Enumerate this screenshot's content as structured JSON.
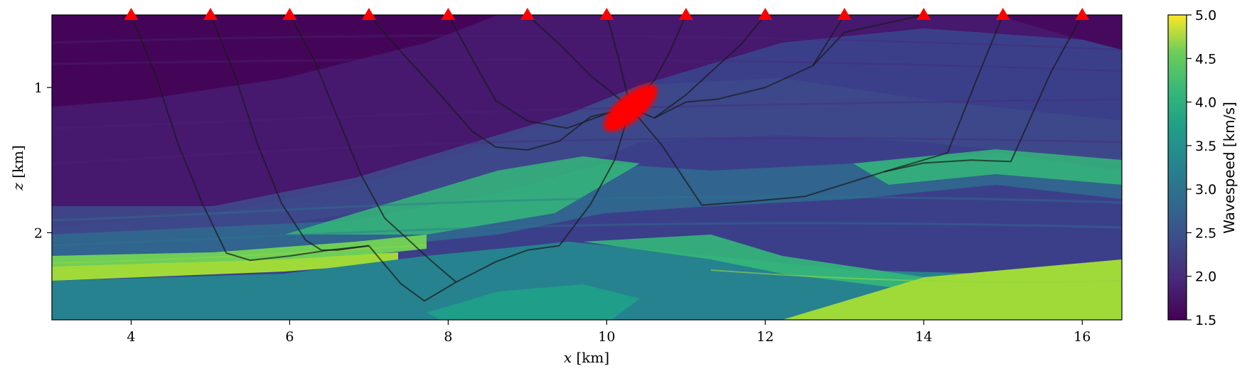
{
  "chart_data": {
    "type": "heatmap",
    "title": "",
    "xlabel_var": "x",
    "xlabel_unit": " [km]",
    "ylabel_var": "z",
    "ylabel_unit": " [km]",
    "xlim": [
      3.0,
      16.5
    ],
    "ylim_inverted": [
      0.5,
      2.6
    ],
    "x_ticks": [
      4,
      6,
      8,
      10,
      12,
      14,
      16
    ],
    "y_ticks": [
      1,
      2
    ],
    "colorbar": {
      "label": "Wavespeed [km/s]",
      "range": [
        1.5,
        5.0
      ],
      "ticks": [
        "1.5",
        "2.0",
        "2.5",
        "3.0",
        "3.5",
        "4.0",
        "4.5",
        "5.0"
      ],
      "colormap": "viridis"
    },
    "receivers": {
      "marker": "red-triangle",
      "color": "#ff0000",
      "depth": 0.5,
      "x": [
        4,
        5,
        6,
        7,
        8,
        9,
        10,
        11,
        12,
        13,
        14,
        15,
        16
      ]
    },
    "source": {
      "color": "#ff0000",
      "center": [
        10.3,
        1.14
      ],
      "semi_axes_km": [
        0.42,
        0.09
      ],
      "rotation_deg": -40
    },
    "rays": [
      {
        "name": "ray-4",
        "points": [
          [
            4,
            0.5
          ],
          [
            4.3,
            0.9
          ],
          [
            4.6,
            1.4
          ],
          [
            4.9,
            1.8
          ],
          [
            5.2,
            2.14
          ],
          [
            5.5,
            2.19
          ],
          [
            6.0,
            2.16
          ],
          [
            6.5,
            2.12
          ],
          [
            7.0,
            2.09
          ]
        ]
      },
      {
        "name": "ray-5",
        "points": [
          [
            5,
            0.5
          ],
          [
            5.3,
            0.9
          ],
          [
            5.6,
            1.4
          ],
          [
            5.9,
            1.8
          ],
          [
            6.2,
            2.05
          ],
          [
            6.4,
            2.12
          ],
          [
            6.6,
            2.12
          ],
          [
            7.0,
            2.09
          ]
        ]
      },
      {
        "name": "ray-6",
        "points": [
          [
            6,
            0.5
          ],
          [
            6.3,
            0.8
          ],
          [
            6.6,
            1.2
          ],
          [
            6.9,
            1.6
          ],
          [
            7.2,
            1.9
          ],
          [
            7.4,
            2.0
          ],
          [
            7.8,
            2.2
          ],
          [
            8.1,
            2.34
          ]
        ]
      },
      {
        "name": "ray-7",
        "points": [
          [
            7,
            0.5
          ],
          [
            7.4,
            0.75
          ],
          [
            7.9,
            1.05
          ],
          [
            8.3,
            1.3
          ],
          [
            8.6,
            1.41
          ],
          [
            9.0,
            1.43
          ],
          [
            9.4,
            1.37
          ],
          [
            9.8,
            1.2
          ],
          [
            10.3,
            1.14
          ]
        ]
      },
      {
        "name": "ray-8",
        "points": [
          [
            8,
            0.5
          ],
          [
            8.3,
            0.8
          ],
          [
            8.6,
            1.09
          ],
          [
            9.0,
            1.23
          ],
          [
            9.5,
            1.28
          ],
          [
            10.0,
            1.18
          ],
          [
            10.3,
            1.14
          ]
        ]
      },
      {
        "name": "ray-9",
        "points": [
          [
            9,
            0.5
          ],
          [
            9.4,
            0.7
          ],
          [
            9.8,
            0.92
          ],
          [
            10.3,
            1.14
          ]
        ]
      },
      {
        "name": "ray-10",
        "points": [
          [
            10,
            0.5
          ],
          [
            10.15,
            0.8
          ],
          [
            10.3,
            1.14
          ]
        ]
      },
      {
        "name": "ray-11",
        "points": [
          [
            11,
            0.5
          ],
          [
            10.8,
            0.75
          ],
          [
            10.6,
            0.95
          ],
          [
            10.3,
            1.14
          ]
        ]
      },
      {
        "name": "ray-12",
        "points": [
          [
            12,
            0.5
          ],
          [
            11.7,
            0.7
          ],
          [
            11.3,
            0.9
          ],
          [
            11.0,
            1.05
          ],
          [
            10.6,
            1.21
          ],
          [
            10.3,
            1.14
          ]
        ]
      },
      {
        "name": "ray-13",
        "points": [
          [
            13,
            0.5
          ],
          [
            12.6,
            0.85
          ],
          [
            12.0,
            1.0
          ],
          [
            11.4,
            1.08
          ],
          [
            11.0,
            1.1
          ],
          [
            10.6,
            1.21
          ]
        ]
      },
      {
        "name": "ray-14",
        "points": [
          [
            14,
            0.5
          ],
          [
            13.0,
            0.62
          ],
          [
            12.6,
            0.85
          ]
        ]
      },
      {
        "name": "ray-15",
        "points": [
          [
            15,
            0.5
          ],
          [
            14.7,
            0.9
          ],
          [
            14.3,
            1.45
          ],
          [
            13.5,
            1.58
          ],
          [
            12.5,
            1.75
          ],
          [
            11.7,
            1.79
          ],
          [
            11.2,
            1.81
          ],
          [
            10.7,
            1.4
          ],
          [
            10.3,
            1.14
          ]
        ]
      },
      {
        "name": "ray-16",
        "points": [
          [
            16,
            0.5
          ],
          [
            15.6,
            0.9
          ],
          [
            15.1,
            1.51
          ],
          [
            14.6,
            1.5
          ],
          [
            14.0,
            1.52
          ],
          [
            13.5,
            1.58
          ]
        ]
      },
      {
        "name": "ray-conv",
        "points": [
          [
            7.0,
            2.09
          ],
          [
            7.4,
            2.35
          ],
          [
            7.7,
            2.47
          ],
          [
            8.1,
            2.34
          ],
          [
            8.6,
            2.2
          ],
          [
            9.0,
            2.12
          ],
          [
            9.4,
            2.09
          ],
          [
            9.8,
            1.8
          ],
          [
            10.1,
            1.5
          ],
          [
            10.3,
            1.14
          ]
        ]
      }
    ]
  }
}
